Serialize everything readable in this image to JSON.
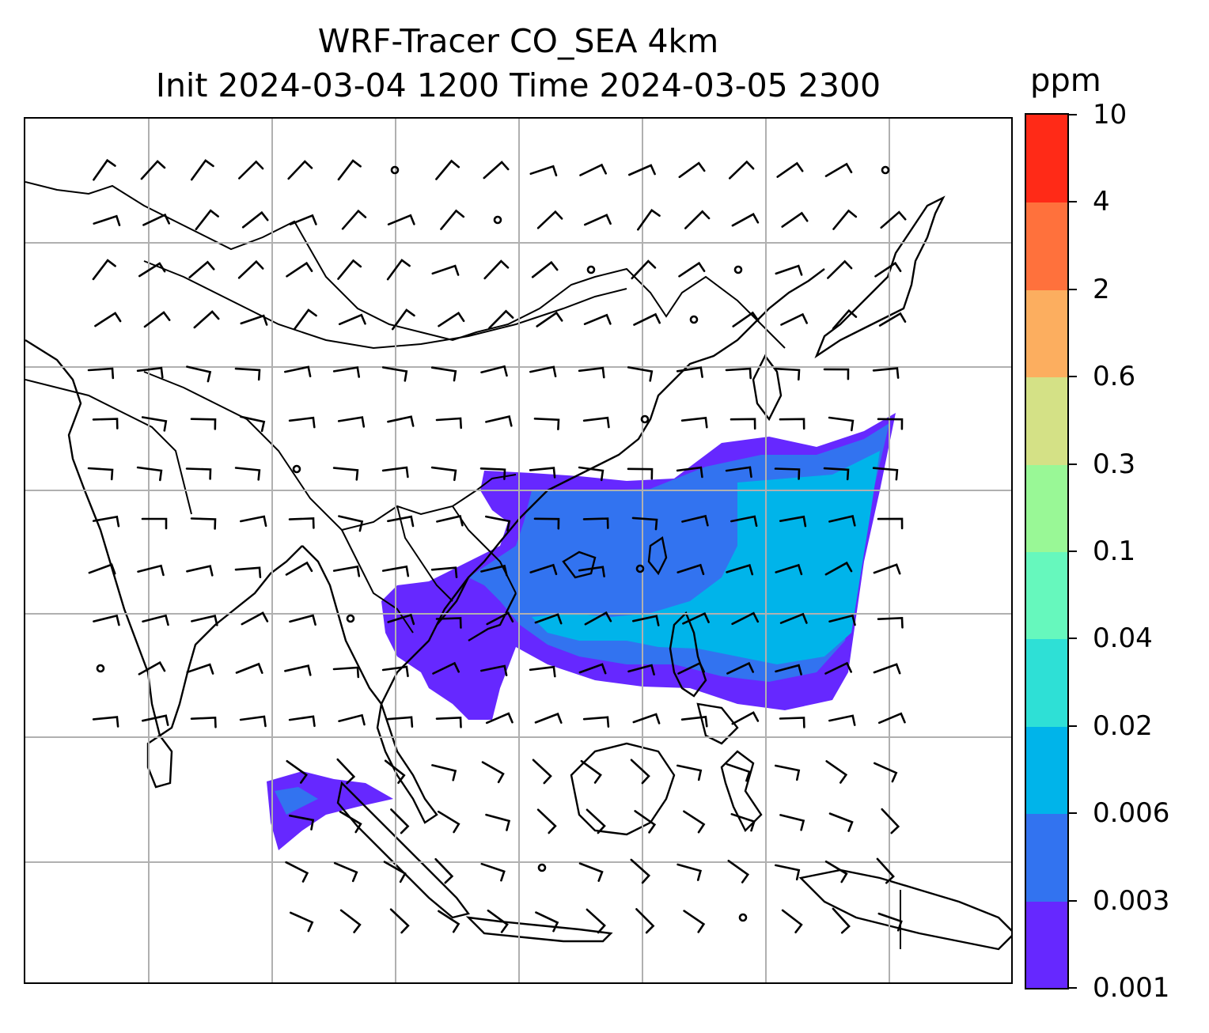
{
  "title": {
    "line1": "WRF-Tracer CO_SEA 4km",
    "line2": "Init 2024-03-04 1200 Time 2024-03-05 2300"
  },
  "colorbar": {
    "unit": "ppm",
    "labels": [
      "0.001",
      "0.003",
      "0.006",
      "0.02",
      "0.04",
      "0.1",
      "0.3",
      "0.6",
      "2",
      "4",
      "10"
    ],
    "colors": [
      "#6628ff",
      "#3273f0",
      "#00b4ea",
      "#2ee0d6",
      "#66f8bd",
      "#99f896",
      "#d4e186",
      "#fcae5f",
      "#ff713c",
      "#ff2a17"
    ]
  },
  "map": {
    "projection": "lat-lon with gridlines",
    "gridlines": true,
    "field": "CO tracer concentration (ppm)",
    "vectors": "wind barbs",
    "plume_color_dominant": "#3273f0"
  }
}
